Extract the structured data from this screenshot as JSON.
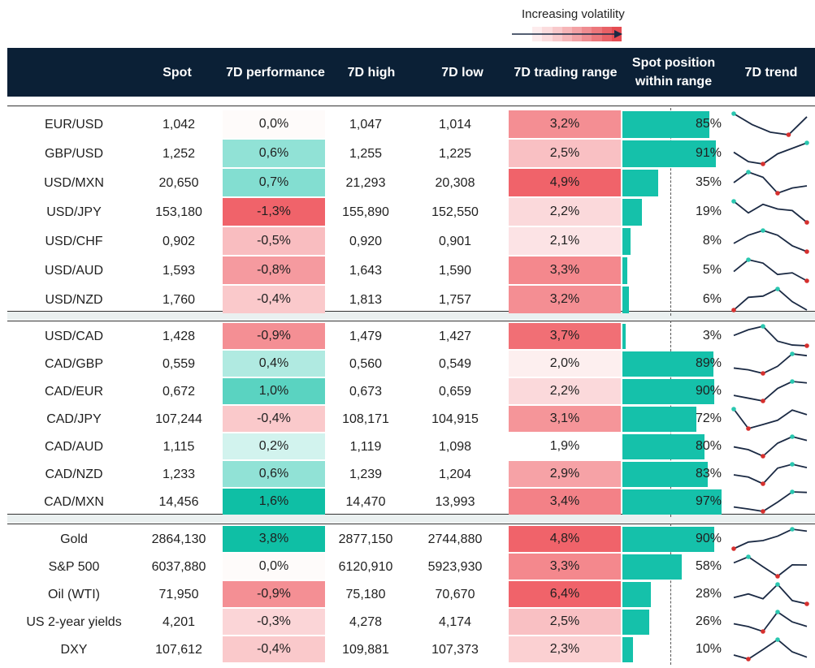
{
  "legend": {
    "label": "Increasing volatility",
    "gradient": [
      "#ffffff",
      "#fdeced",
      "#fbdcdd",
      "#f8c9cb",
      "#f6b5b7",
      "#f3a1a4",
      "#ef8c90",
      "#ec777b",
      "#e86166",
      "#e54c52"
    ]
  },
  "headers": {
    "spot": "Spot",
    "perf": "7D performance",
    "high": "7D high",
    "low": "7D low",
    "range": "7D trading range",
    "position": "Spot position within range",
    "trend": "7D trend"
  },
  "colors": {
    "header_bg": "#0b2036",
    "range_bar": "#15c1aa",
    "trend_line": "#1b2a44",
    "trend_high_marker": "#2ac7b0",
    "trend_low_marker": "#d6302e"
  },
  "chart_data": {
    "type": "table",
    "groups": [
      {
        "rows": [
          {
            "name": "EUR/USD",
            "spot": "1,042",
            "perf": "0,0%",
            "high": "1,047",
            "low": "1,014",
            "range": "3,2%",
            "position": "85%",
            "perf_value": 0.0,
            "range_value": 3.2,
            "position_value": 85,
            "trend": [
              1.047,
              1.03,
              1.018,
              1.014,
              1.042
            ]
          },
          {
            "name": "GBP/USD",
            "spot": "1,252",
            "perf": "0,6%",
            "high": "1,255",
            "low": "1,225",
            "range": "2,5%",
            "position": "91%",
            "perf_value": 0.6,
            "range_value": 2.5,
            "position_value": 91,
            "trend": [
              1.24,
              1.228,
              1.225,
              1.238,
              1.245,
              1.252
            ]
          },
          {
            "name": "USD/MXN",
            "spot": "20,650",
            "perf": "0,7%",
            "high": "21,293",
            "low": "20,308",
            "range": "4,9%",
            "position": "35%",
            "perf_value": 0.7,
            "range_value": 4.9,
            "position_value": 35,
            "trend": [
              20.8,
              21.293,
              21.05,
              20.308,
              20.55,
              20.65
            ]
          },
          {
            "name": "USD/JPY",
            "spot": "153,180",
            "perf": "-1,3%",
            "high": "155,890",
            "low": "152,550",
            "range": "2,2%",
            "position": "19%",
            "perf_value": -1.3,
            "range_value": 2.2,
            "position_value": 19,
            "trend": [
              155.89,
              154.4,
              155.5,
              154.9,
              154.7,
              153.18
            ]
          },
          {
            "name": "USD/CHF",
            "spot": "0,902",
            "perf": "-0,5%",
            "high": "0,920",
            "low": "0,901",
            "range": "2,1%",
            "position": "8%",
            "perf_value": -0.5,
            "range_value": 2.1,
            "position_value": 8,
            "trend": [
              0.909,
              0.916,
              0.92,
              0.916,
              0.907,
              0.902
            ]
          },
          {
            "name": "USD/AUD",
            "spot": "1,593",
            "perf": "-0,8%",
            "high": "1,643",
            "low": "1,590",
            "range": "3,3%",
            "position": "5%",
            "perf_value": -0.8,
            "range_value": 3.3,
            "position_value": 5,
            "trend": [
              1.615,
              1.643,
              1.635,
              1.608,
              1.612,
              1.593
            ]
          },
          {
            "name": "USD/NZD",
            "spot": "1,760",
            "perf": "-0,4%",
            "high": "1,813",
            "low": "1,757",
            "range": "3,2%",
            "position": "6%",
            "perf_value": -0.4,
            "range_value": 3.2,
            "position_value": 6,
            "trend": [
              1.76,
              1.792,
              1.795,
              1.813,
              1.781,
              1.76
            ]
          }
        ]
      },
      {
        "rows": [
          {
            "name": "USD/CAD",
            "spot": "1,428",
            "perf": "-0,9%",
            "high": "1,479",
            "low": "1,427",
            "range": "3,7%",
            "position": "3%",
            "perf_value": -0.9,
            "range_value": 3.7,
            "position_value": 3,
            "trend": [
              1.455,
              1.47,
              1.479,
              1.44,
              1.43,
              1.428
            ]
          },
          {
            "name": "CAD/GBP",
            "spot": "0,559",
            "perf": "0,4%",
            "high": "0,560",
            "low": "0,549",
            "range": "2,0%",
            "position": "89%",
            "perf_value": 0.4,
            "range_value": 2.0,
            "position_value": 89,
            "trend": [
              0.552,
              0.551,
              0.549,
              0.553,
              0.56,
              0.559
            ]
          },
          {
            "name": "CAD/EUR",
            "spot": "0,672",
            "perf": "1,0%",
            "high": "0,673",
            "low": "0,659",
            "range": "2,2%",
            "position": "90%",
            "perf_value": 1.0,
            "range_value": 2.2,
            "position_value": 90,
            "trend": [
              0.663,
              0.661,
              0.659,
              0.668,
              0.673,
              0.672
            ]
          },
          {
            "name": "CAD/JPY",
            "spot": "107,244",
            "perf": "-0,4%",
            "high": "108,171",
            "low": "104,915",
            "range": "3,1%",
            "position": "72%",
            "perf_value": -0.4,
            "range_value": 3.1,
            "position_value": 72,
            "trend": [
              108.171,
              104.915,
              105.6,
              106.3,
              108.0,
              107.244
            ]
          },
          {
            "name": "CAD/AUD",
            "spot": "1,115",
            "perf": "0,2%",
            "high": "1,119",
            "low": "1,098",
            "range": "1,9%",
            "position": "80%",
            "perf_value": 0.2,
            "range_value": 1.9,
            "position_value": 80,
            "trend": [
              1.108,
              1.105,
              1.098,
              1.112,
              1.119,
              1.115
            ]
          },
          {
            "name": "CAD/NZD",
            "spot": "1,233",
            "perf": "0,6%",
            "high": "1,239",
            "low": "1,204",
            "range": "2,9%",
            "position": "83%",
            "perf_value": 0.6,
            "range_value": 2.9,
            "position_value": 83,
            "trend": [
              1.22,
              1.216,
              1.204,
              1.232,
              1.239,
              1.233
            ]
          },
          {
            "name": "CAD/MXN",
            "spot": "14,456",
            "perf": "1,6%",
            "high": "14,470",
            "low": "13,993",
            "range": "3,4%",
            "position": "97%",
            "perf_value": 1.6,
            "range_value": 3.4,
            "position_value": 97,
            "trend": [
              14.1,
              14.05,
              13.993,
              14.22,
              14.47,
              14.456
            ]
          }
        ]
      },
      {
        "rows": [
          {
            "name": "Gold",
            "spot": "2864,130",
            "perf": "3,8%",
            "high": "2877,150",
            "low": "2744,880",
            "range": "4,8%",
            "position": "90%",
            "perf_value": 3.8,
            "range_value": 4.8,
            "position_value": 90,
            "trend": [
              2744.88,
              2790,
              2800,
              2830,
              2877.15,
              2864.13
            ]
          },
          {
            "name": "S&P 500",
            "spot": "6037,880",
            "perf": "0,0%",
            "high": "6120,910",
            "low": "5923,930",
            "range": "3,3%",
            "position": "58%",
            "perf_value": 0.0,
            "range_value": 3.3,
            "position_value": 58,
            "trend": [
              6060,
              6120.91,
              6020,
              5923.93,
              6040,
              6037.88
            ]
          },
          {
            "name": "Oil (WTI)",
            "spot": "71,950",
            "perf": "-0,9%",
            "high": "75,180",
            "low": "70,670",
            "range": "6,4%",
            "position": "28%",
            "perf_value": -0.9,
            "range_value": 6.4,
            "position_value": 28,
            "trend": [
              73.0,
              73.6,
              72.8,
              75.18,
              72.5,
              71.95
            ]
          },
          {
            "name": "US 2-year yields",
            "spot": "4,201",
            "perf": "-0,3%",
            "high": "4,278",
            "low": "4,174",
            "range": "2,5%",
            "position": "26%",
            "perf_value": -0.3,
            "range_value": 2.5,
            "position_value": 26,
            "trend": [
              4.215,
              4.2,
              4.174,
              4.278,
              4.225,
              4.201
            ]
          },
          {
            "name": "DXY",
            "spot": "107,612",
            "perf": "-0,4%",
            "high": "109,881",
            "low": "107,373",
            "range": "2,3%",
            "position": "10%",
            "perf_value": -0.4,
            "range_value": 2.3,
            "position_value": 10,
            "trend": [
              107.9,
              107.373,
              108.6,
              109.881,
              108.3,
              107.612
            ]
          }
        ]
      }
    ]
  }
}
